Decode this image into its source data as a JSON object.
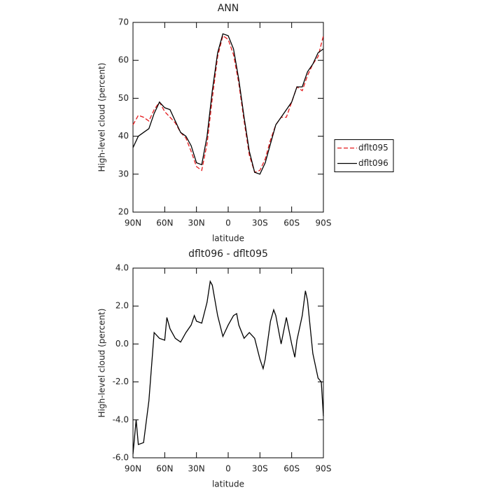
{
  "chart_data": [
    {
      "type": "line",
      "title": "ANN",
      "xlabel": "latitude",
      "ylabel": "High-level cloud (percent)",
      "x": [
        90,
        85,
        80,
        75,
        70,
        65,
        60,
        55,
        50,
        45,
        40,
        35,
        30,
        25,
        20,
        15,
        10,
        5,
        0,
        -5,
        -10,
        -15,
        -20,
        -25,
        -30,
        -35,
        -40,
        -45,
        -50,
        -55,
        -60,
        -65,
        -70,
        -75,
        -80,
        -85,
        -90
      ],
      "xlim": [
        90,
        -90
      ],
      "xticks": [
        {
          "value": 90,
          "label": "90N"
        },
        {
          "value": 60,
          "label": "60N"
        },
        {
          "value": 30,
          "label": "30N"
        },
        0,
        {
          "value": -30,
          "label": "30S"
        },
        {
          "value": -60,
          "label": "60S"
        },
        {
          "value": -90,
          "label": "90S"
        }
      ],
      "ylim": [
        20,
        70
      ],
      "yticks": [
        20,
        30,
        40,
        50,
        60,
        70
      ],
      "legend": "right",
      "series": [
        {
          "name": "dflt095",
          "color": "#e41a1c",
          "dash": "dashed",
          "values": [
            43,
            45.5,
            45,
            44,
            47,
            49,
            46.5,
            45,
            43.5,
            41,
            39.5,
            36,
            32,
            31,
            38,
            50,
            61,
            66.5,
            65.5,
            61.5,
            54,
            44,
            35,
            30.5,
            31,
            34,
            39,
            43,
            45,
            45,
            49,
            53,
            52,
            56,
            59,
            61,
            66.5
          ]
        },
        {
          "name": "dflt096",
          "color": "#000000",
          "dash": "solid",
          "values": [
            37,
            40,
            41,
            42,
            46,
            49,
            47.5,
            47,
            44,
            41,
            40,
            37.5,
            33,
            32.5,
            40,
            52,
            62,
            67,
            66.5,
            63,
            55,
            45,
            36,
            30.5,
            30,
            33,
            38,
            43,
            45,
            47,
            49,
            53,
            53,
            57,
            59,
            62,
            63
          ]
        }
      ]
    },
    {
      "type": "line",
      "title": "dflt096 - dflt095",
      "xlabel": "latitude",
      "ylabel": "High-level cloud (percent)",
      "x": [
        90,
        87,
        85,
        80,
        75,
        70,
        65,
        60,
        58,
        55,
        50,
        45,
        40,
        35,
        32,
        30,
        25,
        20,
        17,
        15,
        10,
        5,
        0,
        -5,
        -8,
        -10,
        -15,
        -20,
        -25,
        -30,
        -33,
        -35,
        -40,
        -43,
        -45,
        -50,
        -55,
        -60,
        -63,
        -65,
        -70,
        -73,
        -75,
        -80,
        -85,
        -88,
        -90
      ],
      "xlim": [
        90,
        -90
      ],
      "xticks": [
        {
          "value": 90,
          "label": "90N"
        },
        {
          "value": 60,
          "label": "60N"
        },
        {
          "value": 30,
          "label": "30N"
        },
        0,
        {
          "value": -30,
          "label": "30S"
        },
        {
          "value": -60,
          "label": "60S"
        },
        {
          "value": -90,
          "label": "90S"
        }
      ],
      "ylim": [
        -6,
        4
      ],
      "yticks": [
        {
          "value": -6,
          "label": "-6.0"
        },
        {
          "value": -4,
          "label": "-4.0"
        },
        {
          "value": -2,
          "label": "-2.0"
        },
        {
          "value": 0,
          "label": "0.0"
        },
        {
          "value": 2,
          "label": "2.0"
        },
        {
          "value": 4,
          "label": "4.0"
        }
      ],
      "series": [
        {
          "color": "#000000",
          "dash": "solid",
          "values": [
            -5.8,
            -4.0,
            -5.3,
            -5.2,
            -3.0,
            0.6,
            0.3,
            0.2,
            1.4,
            0.8,
            0.3,
            0.1,
            0.6,
            1.0,
            1.5,
            1.2,
            1.1,
            2.2,
            3.3,
            3.1,
            1.5,
            0.4,
            1.0,
            1.5,
            1.6,
            1.0,
            0.3,
            0.6,
            0.3,
            -0.8,
            -1.3,
            -0.8,
            1.2,
            1.8,
            1.5,
            0.0,
            1.4,
            0.0,
            -0.7,
            0.2,
            1.5,
            2.8,
            2.3,
            -0.5,
            -1.8,
            -2.0,
            -3.8
          ]
        }
      ]
    }
  ]
}
